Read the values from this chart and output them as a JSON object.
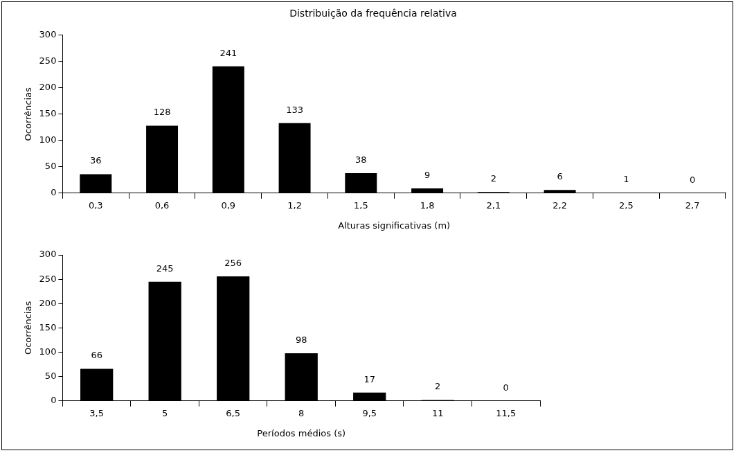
{
  "chart_data": [
    {
      "type": "bar",
      "title": "Distribuição da frequência relativa",
      "xlabel": "Alturas significativas (m)",
      "ylabel": "Ocorrências",
      "categories": [
        "0,3",
        "0,6",
        "0,9",
        "1,2",
        "1,5",
        "1,8",
        "2,1",
        "2,2",
        "2,5",
        "2,7"
      ],
      "values": [
        36,
        128,
        241,
        133,
        38,
        9,
        2,
        6,
        1,
        0
      ],
      "color": "#000000",
      "ylim": [
        0,
        300
      ],
      "yticks": [
        0,
        50,
        100,
        150,
        200,
        250,
        300
      ],
      "grid": false,
      "data_labels": true
    },
    {
      "type": "bar",
      "xlabel": "Períodos médios (s)",
      "ylabel": "Ocorrências",
      "categories": [
        "3,5",
        "5",
        "6,5",
        "8",
        "9,5",
        "11",
        "11,5"
      ],
      "values": [
        66,
        245,
        256,
        98,
        17,
        2,
        0
      ],
      "color": "#000000",
      "ylim": [
        0,
        300
      ],
      "yticks": [
        0,
        50,
        100,
        150,
        200,
        250,
        300
      ],
      "grid": false,
      "data_labels": true
    }
  ]
}
